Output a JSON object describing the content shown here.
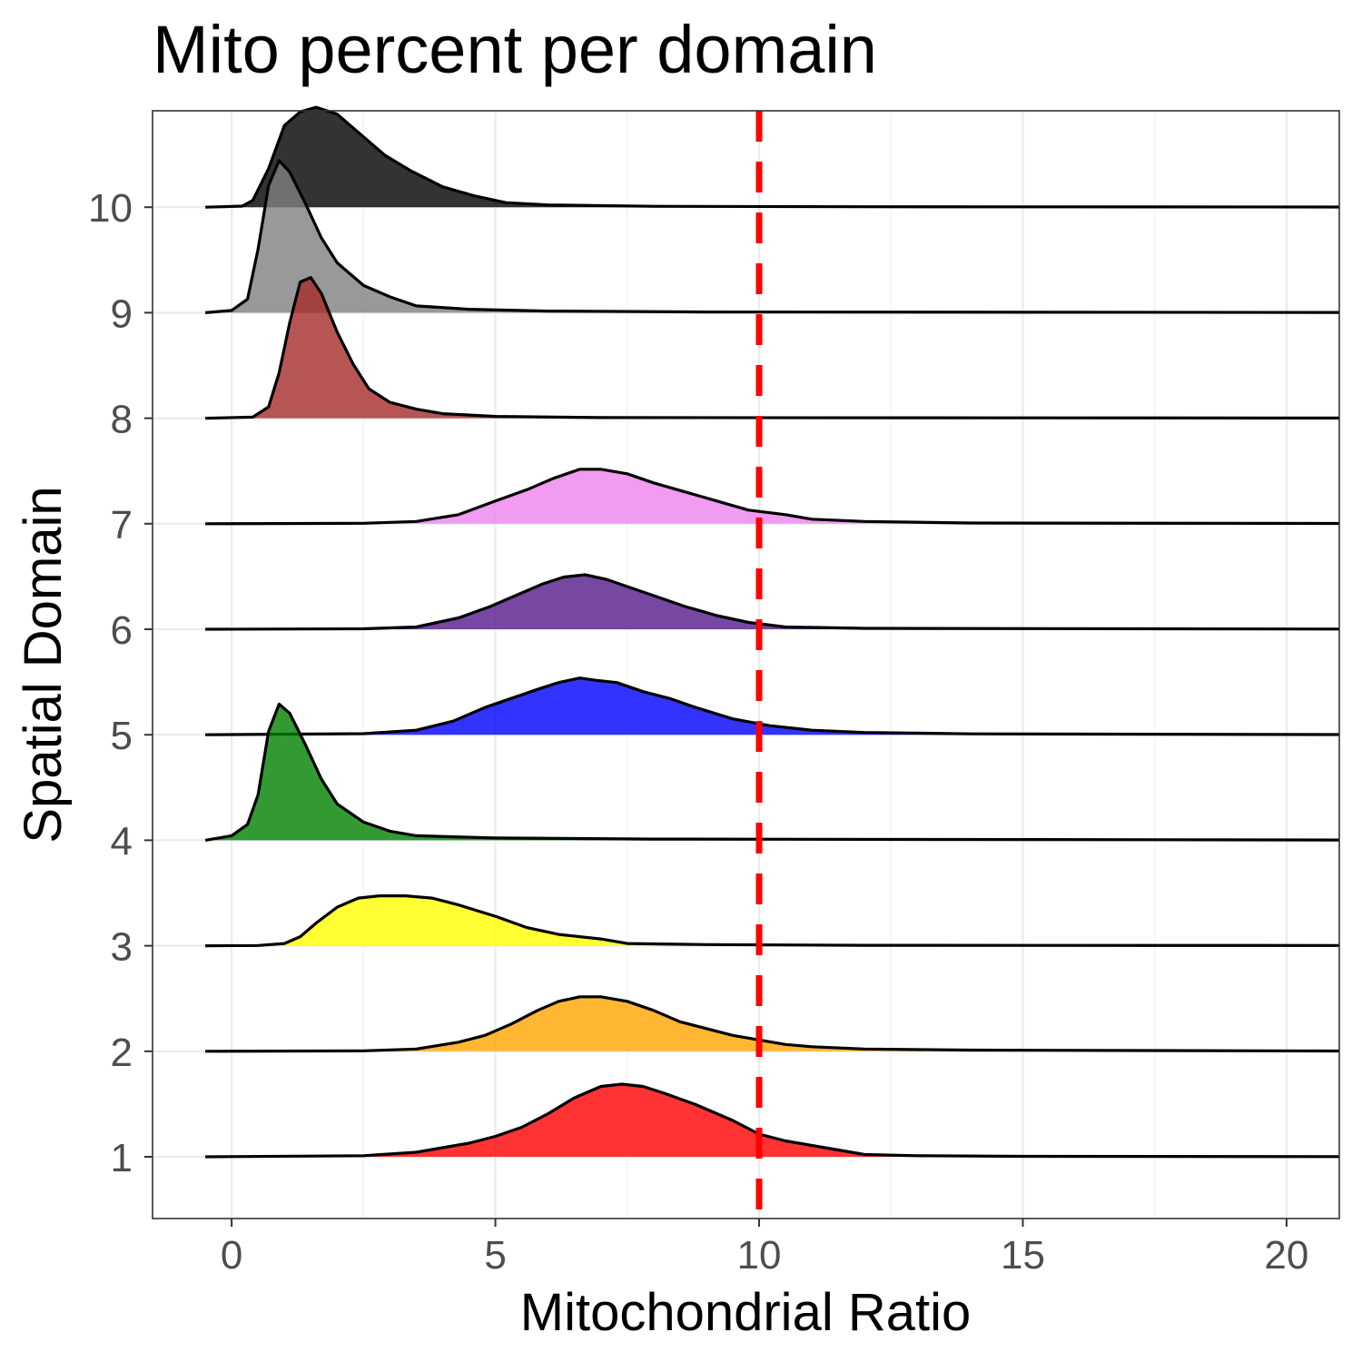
{
  "chart_data": {
    "type": "ridgeline",
    "title": "Mito percent per domain",
    "xlabel": "Mitochondrial Ratio",
    "ylabel": "Spatial Domain",
    "xlim": [
      -1.5,
      21
    ],
    "x_ticks": [
      0,
      5,
      10,
      15,
      20
    ],
    "x_tick_labels": [
      "0",
      "5",
      "10",
      "15",
      "20"
    ],
    "y_tick_labels": [
      "1",
      "2",
      "3",
      "4",
      "5",
      "6",
      "7",
      "8",
      "9",
      "10"
    ],
    "grid": true,
    "legend": "none",
    "reference_line": {
      "x": 10,
      "color": "#ff0000",
      "style": "dashed"
    },
    "series": [
      {
        "name": "1",
        "color": "#ff0000",
        "points": [
          [
            -0.5,
            0
          ],
          [
            2.5,
            0.005
          ],
          [
            3.5,
            0.02
          ],
          [
            4.5,
            0.06
          ],
          [
            5.0,
            0.09
          ],
          [
            5.5,
            0.13
          ],
          [
            6.0,
            0.19
          ],
          [
            6.5,
            0.26
          ],
          [
            7.0,
            0.31
          ],
          [
            7.4,
            0.32
          ],
          [
            7.8,
            0.31
          ],
          [
            8.2,
            0.28
          ],
          [
            8.8,
            0.23
          ],
          [
            9.5,
            0.16
          ],
          [
            10.0,
            0.1
          ],
          [
            10.5,
            0.07
          ],
          [
            11.0,
            0.05
          ],
          [
            11.5,
            0.03
          ],
          [
            12.0,
            0.01
          ],
          [
            13.0,
            0.005
          ],
          [
            15.0,
            0.002
          ],
          [
            21,
            0.001
          ]
        ]
      },
      {
        "name": "2",
        "color": "#ffa500",
        "points": [
          [
            -0.5,
            0
          ],
          [
            2.5,
            0.002
          ],
          [
            3.5,
            0.01
          ],
          [
            4.3,
            0.04
          ],
          [
            4.8,
            0.07
          ],
          [
            5.3,
            0.12
          ],
          [
            5.8,
            0.18
          ],
          [
            6.2,
            0.22
          ],
          [
            6.6,
            0.24
          ],
          [
            7.0,
            0.24
          ],
          [
            7.5,
            0.22
          ],
          [
            8.0,
            0.18
          ],
          [
            8.5,
            0.13
          ],
          [
            9.0,
            0.1
          ],
          [
            9.5,
            0.07
          ],
          [
            10.0,
            0.05
          ],
          [
            10.5,
            0.03
          ],
          [
            11.0,
            0.02
          ],
          [
            12.0,
            0.01
          ],
          [
            14.0,
            0.005
          ],
          [
            21,
            0.001
          ]
        ]
      },
      {
        "name": "3",
        "color": "#ffff00",
        "points": [
          [
            -0.5,
            0
          ],
          [
            0.5,
            0.001
          ],
          [
            1.0,
            0.01
          ],
          [
            1.3,
            0.04
          ],
          [
            1.6,
            0.1
          ],
          [
            2.0,
            0.17
          ],
          [
            2.4,
            0.21
          ],
          [
            2.8,
            0.22
          ],
          [
            3.3,
            0.22
          ],
          [
            3.8,
            0.21
          ],
          [
            4.3,
            0.18
          ],
          [
            5.0,
            0.13
          ],
          [
            5.6,
            0.08
          ],
          [
            6.2,
            0.05
          ],
          [
            7.0,
            0.03
          ],
          [
            7.5,
            0.01
          ],
          [
            9.0,
            0.005
          ],
          [
            12.0,
            0.002
          ],
          [
            21,
            0.001
          ]
        ]
      },
      {
        "name": "4",
        "color": "#008000",
        "points": [
          [
            -0.5,
            0
          ],
          [
            0.0,
            0.02
          ],
          [
            0.3,
            0.07
          ],
          [
            0.5,
            0.2
          ],
          [
            0.7,
            0.48
          ],
          [
            0.9,
            0.6
          ],
          [
            1.1,
            0.56
          ],
          [
            1.4,
            0.42
          ],
          [
            1.7,
            0.27
          ],
          [
            2.0,
            0.16
          ],
          [
            2.5,
            0.08
          ],
          [
            3.0,
            0.04
          ],
          [
            3.5,
            0.02
          ],
          [
            5.0,
            0.01
          ],
          [
            8.0,
            0.005
          ],
          [
            21,
            0.001
          ]
        ]
      },
      {
        "name": "5",
        "color": "#0000ff",
        "points": [
          [
            -0.5,
            0
          ],
          [
            2.5,
            0.005
          ],
          [
            3.5,
            0.02
          ],
          [
            4.2,
            0.06
          ],
          [
            4.8,
            0.12
          ],
          [
            5.3,
            0.16
          ],
          [
            5.8,
            0.2
          ],
          [
            6.2,
            0.23
          ],
          [
            6.6,
            0.25
          ],
          [
            6.9,
            0.24
          ],
          [
            7.3,
            0.23
          ],
          [
            7.8,
            0.19
          ],
          [
            8.3,
            0.16
          ],
          [
            8.8,
            0.12
          ],
          [
            9.5,
            0.07
          ],
          [
            10.2,
            0.04
          ],
          [
            11.0,
            0.02
          ],
          [
            12.0,
            0.01
          ],
          [
            14.0,
            0.004
          ],
          [
            21,
            0.001
          ]
        ]
      },
      {
        "name": "6",
        "color": "#551a8b",
        "points": [
          [
            -0.5,
            0
          ],
          [
            2.5,
            0.002
          ],
          [
            3.5,
            0.01
          ],
          [
            4.3,
            0.05
          ],
          [
            4.9,
            0.1
          ],
          [
            5.4,
            0.15
          ],
          [
            5.9,
            0.2
          ],
          [
            6.3,
            0.23
          ],
          [
            6.7,
            0.24
          ],
          [
            7.1,
            0.22
          ],
          [
            7.6,
            0.18
          ],
          [
            8.1,
            0.14
          ],
          [
            8.6,
            0.1
          ],
          [
            9.2,
            0.06
          ],
          [
            9.8,
            0.03
          ],
          [
            10.5,
            0.01
          ],
          [
            12.0,
            0.004
          ],
          [
            21,
            0.001
          ]
        ]
      },
      {
        "name": "7",
        "color": "#ee82ee",
        "points": [
          [
            -0.5,
            0
          ],
          [
            2.5,
            0.002
          ],
          [
            3.5,
            0.01
          ],
          [
            4.3,
            0.04
          ],
          [
            5.0,
            0.1
          ],
          [
            5.6,
            0.15
          ],
          [
            6.1,
            0.2
          ],
          [
            6.6,
            0.24
          ],
          [
            7.0,
            0.24
          ],
          [
            7.5,
            0.22
          ],
          [
            8.0,
            0.18
          ],
          [
            8.6,
            0.14
          ],
          [
            9.2,
            0.1
          ],
          [
            9.8,
            0.06
          ],
          [
            10.5,
            0.04
          ],
          [
            11.0,
            0.02
          ],
          [
            12.0,
            0.01
          ],
          [
            14.0,
            0.003
          ],
          [
            21,
            0.001
          ]
        ]
      },
      {
        "name": "8",
        "color": "#a52a2a",
        "points": [
          [
            -0.5,
            0
          ],
          [
            0.4,
            0.005
          ],
          [
            0.7,
            0.05
          ],
          [
            0.9,
            0.2
          ],
          [
            1.1,
            0.42
          ],
          [
            1.3,
            0.6
          ],
          [
            1.5,
            0.62
          ],
          [
            1.7,
            0.55
          ],
          [
            2.0,
            0.38
          ],
          [
            2.3,
            0.24
          ],
          [
            2.6,
            0.13
          ],
          [
            3.0,
            0.07
          ],
          [
            3.5,
            0.04
          ],
          [
            4.0,
            0.02
          ],
          [
            5.0,
            0.008
          ],
          [
            7.0,
            0.003
          ],
          [
            21,
            0.001
          ]
        ]
      },
      {
        "name": "9",
        "color": "#808080",
        "points": [
          [
            -0.5,
            0
          ],
          [
            0.0,
            0.01
          ],
          [
            0.3,
            0.06
          ],
          [
            0.5,
            0.28
          ],
          [
            0.7,
            0.56
          ],
          [
            0.9,
            0.67
          ],
          [
            1.1,
            0.62
          ],
          [
            1.4,
            0.48
          ],
          [
            1.7,
            0.33
          ],
          [
            2.0,
            0.22
          ],
          [
            2.5,
            0.12
          ],
          [
            3.0,
            0.07
          ],
          [
            3.5,
            0.03
          ],
          [
            4.5,
            0.015
          ],
          [
            6.0,
            0.007
          ],
          [
            9.0,
            0.003
          ],
          [
            21,
            0.001
          ]
        ]
      },
      {
        "name": "10",
        "color": "#000000",
        "points": [
          [
            -0.5,
            0
          ],
          [
            0.2,
            0.005
          ],
          [
            0.4,
            0.03
          ],
          [
            0.7,
            0.17
          ],
          [
            1.0,
            0.36
          ],
          [
            1.3,
            0.42
          ],
          [
            1.6,
            0.44
          ],
          [
            2.0,
            0.41
          ],
          [
            2.4,
            0.33
          ],
          [
            2.9,
            0.23
          ],
          [
            3.4,
            0.16
          ],
          [
            4.0,
            0.09
          ],
          [
            4.6,
            0.05
          ],
          [
            5.2,
            0.02
          ],
          [
            6.0,
            0.01
          ],
          [
            8.0,
            0.004
          ],
          [
            12.0,
            0.002
          ],
          [
            21,
            0.001
          ]
        ]
      }
    ]
  }
}
